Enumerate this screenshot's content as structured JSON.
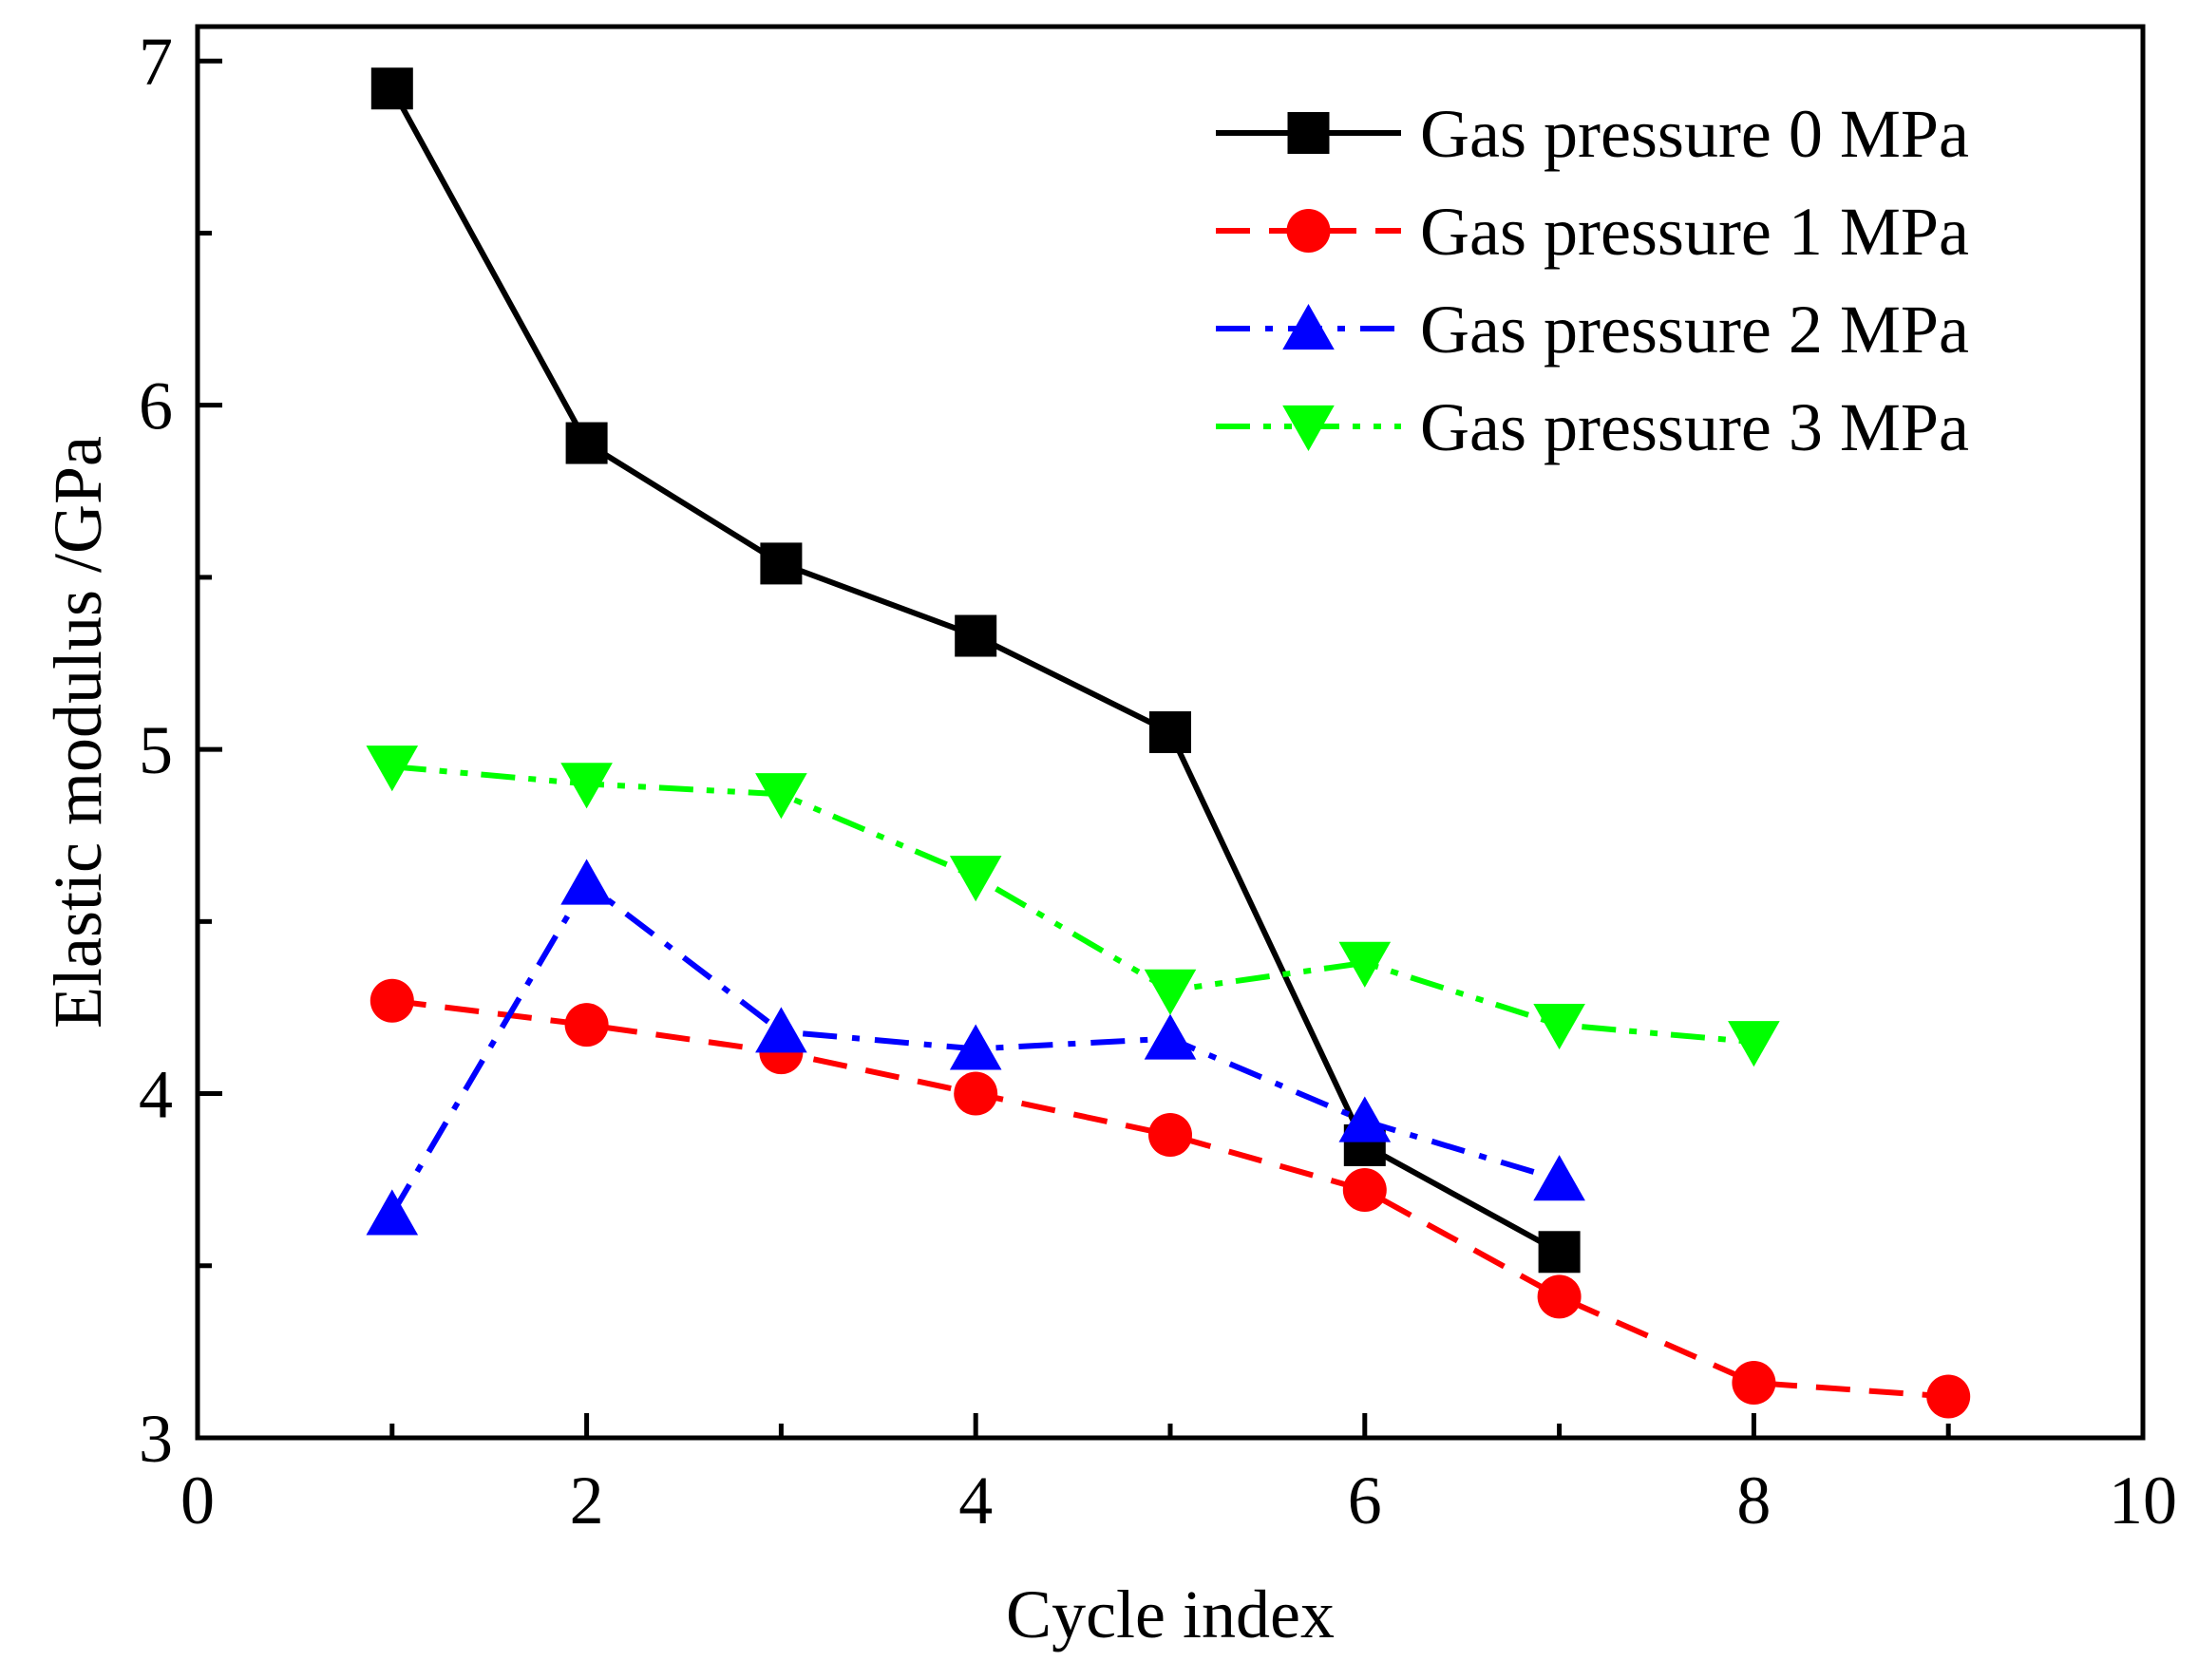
{
  "chart_data": {
    "type": "line",
    "title": "",
    "xlabel": "Cycle index",
    "ylabel": "Elastic modulus /GPa",
    "xlim": [
      0,
      10
    ],
    "ylim": [
      3,
      7.1
    ],
    "xticks": [
      0,
      2,
      4,
      6,
      8,
      10
    ],
    "xticks_minor": [
      1,
      3,
      5,
      7,
      9
    ],
    "yticks": [
      3,
      4,
      5,
      6,
      7
    ],
    "yticks_minor": [
      3.5,
      4.5,
      5.5,
      6.5
    ],
    "grid": false,
    "legend_position": "top-right",
    "series": [
      {
        "name": "Gas pressure 0 MPa",
        "color": "#000000",
        "line_style": "solid",
        "marker": "square",
        "x": [
          1,
          2,
          3,
          4,
          5,
          6,
          7
        ],
        "y": [
          6.92,
          5.89,
          5.54,
          5.33,
          5.05,
          3.85,
          3.54
        ]
      },
      {
        "name": "Gas pressure 1 MPa",
        "color": "#ff0000",
        "line_style": "dash",
        "marker": "circle",
        "x": [
          1,
          2,
          3,
          4,
          5,
          6,
          7,
          8,
          9
        ],
        "y": [
          4.27,
          4.2,
          4.12,
          4.0,
          3.88,
          3.72,
          3.41,
          3.16,
          3.12
        ]
      },
      {
        "name": "Gas pressure 2 MPa",
        "color": "#0000ff",
        "line_style": "dash-dot",
        "marker": "triangle-up",
        "x": [
          1,
          2,
          3,
          4,
          5,
          6,
          7
        ],
        "y": [
          3.65,
          4.61,
          4.18,
          4.13,
          4.16,
          3.92,
          3.75
        ]
      },
      {
        "name": "Gas pressure 3 MPa",
        "color": "#00ff00",
        "line_style": "dash-dot-dot",
        "marker": "triangle-down",
        "x": [
          1,
          2,
          3,
          4,
          5,
          6,
          7,
          8
        ],
        "y": [
          4.95,
          4.9,
          4.87,
          4.63,
          4.3,
          4.38,
          4.2,
          4.15
        ]
      }
    ]
  }
}
